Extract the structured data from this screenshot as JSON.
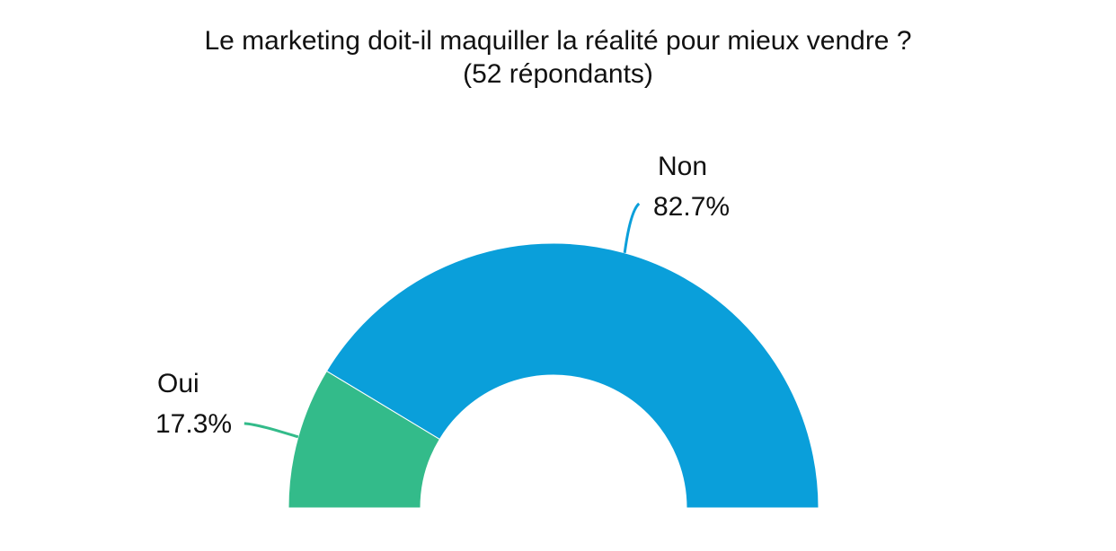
{
  "chart_data": {
    "type": "pie",
    "variant": "half-donut",
    "title_line1": "Le marketing doit-il maquiller la réalité pour mieux vendre ?",
    "title_line2": "(52 répondants)",
    "slices": [
      {
        "label": "Oui",
        "value": 17.3,
        "value_label": "17.3%",
        "color": "#33BB8A"
      },
      {
        "label": "Non",
        "value": 82.7,
        "value_label": "82.7%",
        "color": "#0A9FDA"
      }
    ],
    "legend": "none"
  }
}
